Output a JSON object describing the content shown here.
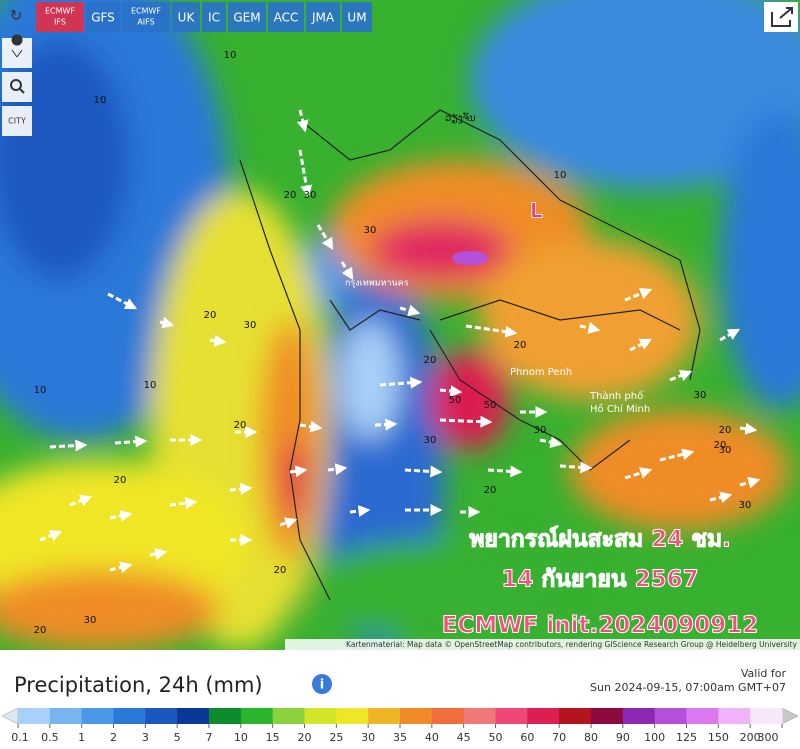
{
  "toolbar": {
    "tabs": [
      {
        "lines": [
          "ECMWF",
          "IFS"
        ]
      },
      {
        "lines": [
          "GFS"
        ]
      },
      {
        "lines": [
          "ECMWF",
          "AIFS"
        ]
      },
      {
        "lines": [
          "UK"
        ]
      },
      {
        "lines": [
          "IC"
        ]
      },
      {
        "lines": [
          "GEM"
        ]
      },
      {
        "lines": [
          "ACC"
        ]
      },
      {
        "lines": [
          "JMA"
        ]
      },
      {
        "lines": [
          "UM"
        ]
      }
    ],
    "city_button": "CITY"
  },
  "map": {
    "overlay": [
      "พยากรณ์ฝนสะสม 24 ชม.",
      "14 กันยายน 2567",
      "ECMWF init.2024090912"
    ],
    "places": {
      "bangkok": "กรุงเทพมหานคร",
      "vientiane": "ວຽງຈັນ",
      "phnom_penh": "Phnom Penh",
      "hcmc": [
        "Thành phố",
        "Hồ Chí Minh"
      ],
      "low": "L"
    },
    "contour_labels": [
      10,
      10,
      10,
      10,
      20,
      20,
      20,
      30,
      30,
      30,
      20,
      30,
      50,
      50,
      30,
      20,
      10,
      20,
      20,
      30,
      20,
      30,
      30,
      20,
      10,
      20,
      20,
      30
    ],
    "attribution": "Kartenmaterial: Map data © OpenStreetMap contributors, rendering GIScience Research Group @ Heidelberg University"
  },
  "legend": {
    "title": "Precipitation, 24h (mm)",
    "valid_label": "Valid for",
    "valid_time": "Sun 2024-09-15, 07:00am GMT+07",
    "ticks": [
      0.1,
      0.5,
      1,
      2,
      3,
      5,
      7,
      10,
      15,
      20,
      25,
      30,
      35,
      40,
      45,
      50,
      60,
      70,
      80,
      90,
      100,
      125,
      150,
      200,
      300
    ],
    "colors": [
      "#a8d0f8",
      "#78b4f0",
      "#4a98e8",
      "#2a78d8",
      "#1a58c0",
      "#0a3898",
      "#0c8c2c",
      "#2cb42c",
      "#8cd23c",
      "#d2e628",
      "#f0e628",
      "#f0b428",
      "#f08c28",
      "#f06e3c",
      "#f07878",
      "#f04678",
      "#dc1e50",
      "#b4141e",
      "#8c0a3c",
      "#8c28b4",
      "#b450dc",
      "#dc78f0",
      "#f0b4f8",
      "#f8e6fa"
    ]
  }
}
